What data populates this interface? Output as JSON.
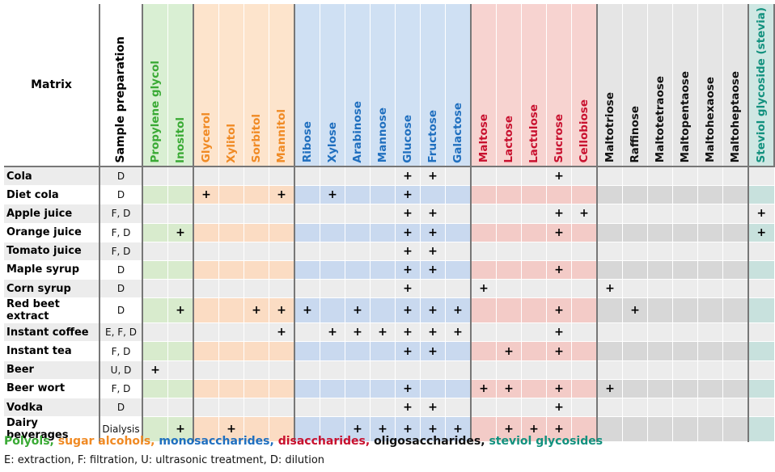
{
  "header": {
    "matrix_label": "Matrix",
    "prep_label": "Sample preparation"
  },
  "groups": [
    {
      "key": "polyols",
      "color": "#3aaa35",
      "head_bg": "#d9efd3",
      "bg_light": "#e4f1df",
      "bg_dark": "#d8ebcd",
      "compounds": [
        "Propylene glycol",
        "Inositol"
      ]
    },
    {
      "key": "sugar_alcohols",
      "color": "#f08a24",
      "head_bg": "#fde4cc",
      "bg_light": "#fdeadb",
      "bg_dark": "#fbdcc3",
      "compounds": [
        "Glycerol",
        "Xylitol",
        "Sorbitol",
        "Mannitol"
      ]
    },
    {
      "key": "monosaccharides",
      "color": "#1f6fbf",
      "head_bg": "#cfe0f3",
      "bg_light": "#dde8f5",
      "bg_dark": "#c9d9ef",
      "compounds": [
        "Ribose",
        "Xylose",
        "Arabinose",
        "Mannose",
        "Glucose",
        "Fructose",
        "Galactose"
      ]
    },
    {
      "key": "disaccharides",
      "color": "#c8102e",
      "head_bg": "#f7d3d0",
      "bg_light": "#f6dcd9",
      "bg_dark": "#f3cbc7",
      "compounds": [
        "Maltose",
        "Lactose",
        "Lactulose",
        "Sucrose",
        "Cellobiose"
      ]
    },
    {
      "key": "oligosaccharides",
      "color": "#111111",
      "head_bg": "#e5e5e5",
      "bg_light": "#e9e9e9",
      "bg_dark": "#d7d7d7",
      "compounds": [
        "Maltotriose",
        "Raffinose",
        "Maltotetraose",
        "Maltopentaose",
        "Maltohexaose",
        "Maltoheptaose"
      ]
    },
    {
      "key": "steviol_glycosides",
      "color": "#12917e",
      "head_bg": "#cfe7e3",
      "bg_light": "#dcecea",
      "bg_dark": "#c8e1dd",
      "compounds": [
        "Steviol glycoside (stevia)"
      ]
    }
  ],
  "plus_symbol": "+",
  "rows": [
    {
      "name": "Cola",
      "prep": "D",
      "marks": [
        "Glucose",
        "Fructose",
        "Sucrose"
      ]
    },
    {
      "name": "Diet cola",
      "prep": "D",
      "marks": [
        "Glycerol",
        "Mannitol",
        "Xylose",
        "Glucose"
      ]
    },
    {
      "name": "Apple juice",
      "prep": "F, D",
      "marks": [
        "Glucose",
        "Fructose",
        "Sucrose",
        "Cellobiose",
        "Steviol glycoside (stevia)"
      ]
    },
    {
      "name": "Orange juice",
      "prep": "F, D",
      "marks": [
        "Inositol",
        "Glucose",
        "Fructose",
        "Sucrose",
        "Steviol glycoside (stevia)"
      ]
    },
    {
      "name": "Tomato juice",
      "prep": "F, D",
      "marks": [
        "Glucose",
        "Fructose"
      ]
    },
    {
      "name": "Maple syrup",
      "prep": "D",
      "marks": [
        "Glucose",
        "Fructose",
        "Sucrose"
      ]
    },
    {
      "name": "Corn syrup",
      "prep": "D",
      "marks": [
        "Glucose",
        "Maltose",
        "Maltotriose"
      ]
    },
    {
      "name": "Red beet extract",
      "prep": "D",
      "marks": [
        "Inositol",
        "Sorbitol",
        "Mannitol",
        "Ribose",
        "Arabinose",
        "Glucose",
        "Fructose",
        "Galactose",
        "Sucrose",
        "Raffinose"
      ]
    },
    {
      "name": "Instant coffee",
      "prep": "E, F, D",
      "marks": [
        "Mannitol",
        "Xylose",
        "Arabinose",
        "Mannose",
        "Glucose",
        "Fructose",
        "Galactose",
        "Sucrose"
      ]
    },
    {
      "name": "Instant tea",
      "prep": "F, D",
      "marks": [
        "Glucose",
        "Fructose",
        "Lactose",
        "Sucrose"
      ]
    },
    {
      "name": "Beer",
      "prep": "U, D",
      "marks": [
        "Propylene glycol"
      ]
    },
    {
      "name": "Beer wort",
      "prep": "F, D",
      "marks": [
        "Glucose",
        "Maltose",
        "Lactose",
        "Sucrose",
        "Maltotriose"
      ]
    },
    {
      "name": "Vodka",
      "prep": "D",
      "marks": [
        "Glucose",
        "Fructose",
        "Sucrose"
      ]
    },
    {
      "name": "Dairy beverages",
      "prep": "Dialysis",
      "marks": [
        "Inositol",
        "Xylitol",
        "Arabinose",
        "Mannose",
        "Glucose",
        "Fructose",
        "Galactose",
        "Lactose",
        "Lactulose",
        "Sucrose"
      ]
    }
  ],
  "legend": [
    {
      "text": "Polyols,",
      "color": "#3aaa35"
    },
    {
      "text": "sugar alcohols,",
      "color": "#f08a24"
    },
    {
      "text": "monosaccharides,",
      "color": "#1f6fbf"
    },
    {
      "text": "disaccharides,",
      "color": "#c8102e"
    },
    {
      "text": "oligosaccharides,",
      "color": "#111111"
    },
    {
      "text": "steviol glycosides",
      "color": "#12917e"
    }
  ],
  "abbreviations": "E: extraction, F: filtration, U: ultrasonic treatment, D: dilution",
  "row_bg_light": "#ececec",
  "row_bg_white": "#ffffff"
}
